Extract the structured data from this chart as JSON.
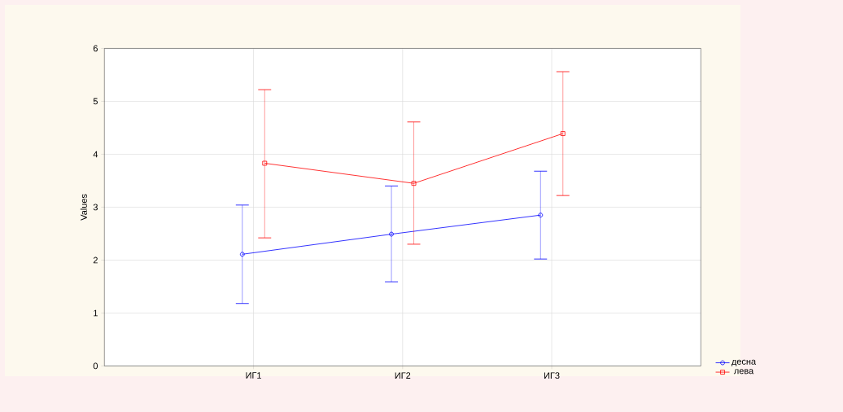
{
  "chart_data": {
    "type": "line",
    "ylabel": "Values",
    "categories": [
      "ИГ1",
      "ИГ2",
      "ИГ3"
    ],
    "series": [
      {
        "name": "десна",
        "color": "#0000ff",
        "marker": "circle",
        "values": [
          2.11,
          2.49,
          2.85
        ],
        "errors": [
          [
            1.18,
            3.04
          ],
          [
            1.59,
            3.4
          ],
          [
            2.02,
            3.68
          ]
        ]
      },
      {
        "name": "лева",
        "color": "#ff0000",
        "marker": "square",
        "values": [
          3.83,
          3.45,
          4.39
        ],
        "errors": [
          [
            2.42,
            5.22
          ],
          [
            2.3,
            4.61
          ],
          [
            3.22,
            5.56
          ]
        ]
      }
    ],
    "ylim": [
      0,
      6
    ],
    "yticks": [
      0,
      1,
      2,
      3,
      4,
      5,
      6
    ],
    "grid": true,
    "legend": "bottom right"
  }
}
